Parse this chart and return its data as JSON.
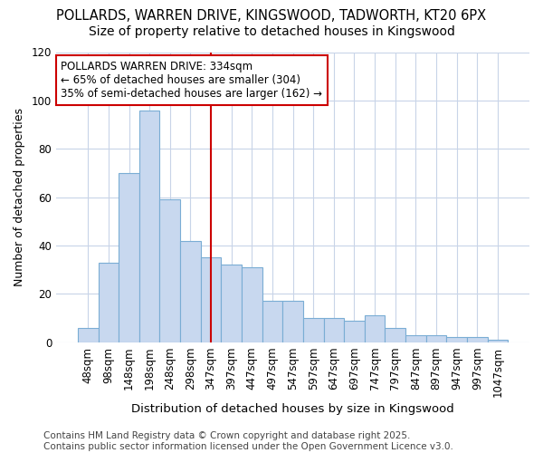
{
  "title1": "POLLARDS, WARREN DRIVE, KINGSWOOD, TADWORTH, KT20 6PX",
  "title2": "Size of property relative to detached houses in Kingswood",
  "xlabel": "Distribution of detached houses by size in Kingswood",
  "ylabel": "Number of detached properties",
  "bar_values": [
    6,
    33,
    70,
    96,
    59,
    42,
    35,
    32,
    31,
    17,
    17,
    10,
    10,
    9,
    11,
    6,
    3,
    3,
    2,
    2,
    1
  ],
  "categories": [
    "48sqm",
    "98sqm",
    "148sqm",
    "198sqm",
    "248sqm",
    "298sqm",
    "347sqm",
    "397sqm",
    "447sqm",
    "497sqm",
    "547sqm",
    "597sqm",
    "647sqm",
    "697sqm",
    "747sqm",
    "797sqm",
    "847sqm",
    "897sqm",
    "947sqm",
    "997sqm",
    "1047sqm"
  ],
  "bar_color": "#c8d8ef",
  "bar_edge_color": "#7aadd4",
  "background_color": "#ffffff",
  "plot_bg_color": "#ffffff",
  "grid_color": "#c8d4e8",
  "vline_x": 6.0,
  "vline_color": "#cc0000",
  "annotation_text": "POLLARDS WARREN DRIVE: 334sqm\n← 65% of detached houses are smaller (304)\n35% of semi-detached houses are larger (162) →",
  "annotation_box_color": "#ffffff",
  "annotation_box_edge": "#cc0000",
  "ylim": [
    0,
    120
  ],
  "yticks": [
    0,
    20,
    40,
    60,
    80,
    100,
    120
  ],
  "footer_text": "Contains HM Land Registry data © Crown copyright and database right 2025.\nContains public sector information licensed under the Open Government Licence v3.0.",
  "title1_fontsize": 10.5,
  "title2_fontsize": 10,
  "xlabel_fontsize": 9.5,
  "ylabel_fontsize": 9,
  "tick_fontsize": 8.5,
  "annotation_fontsize": 8.5,
  "footer_fontsize": 7.5
}
